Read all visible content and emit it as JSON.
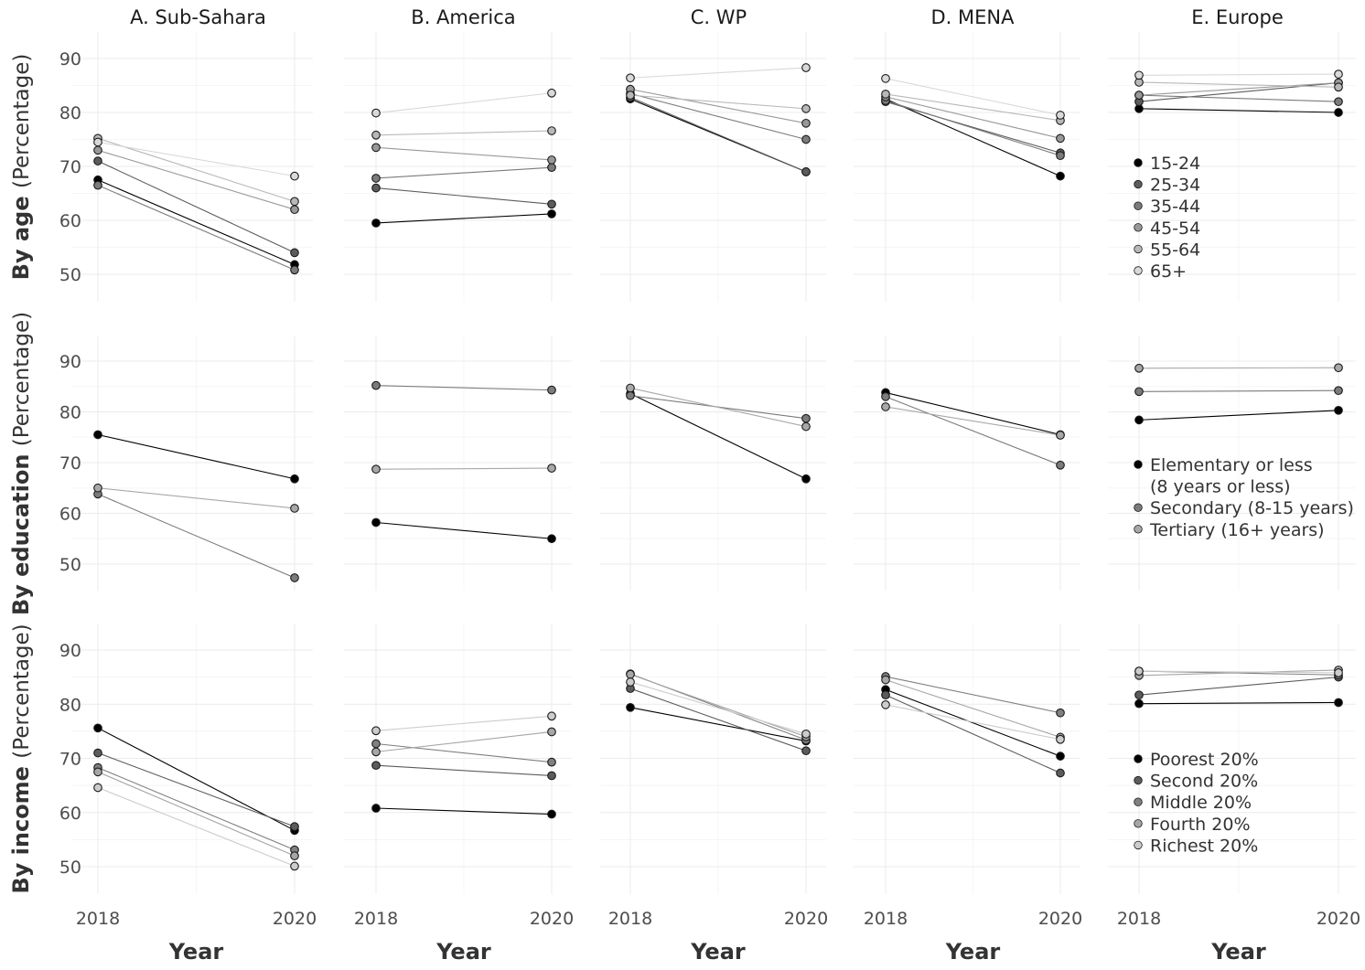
{
  "chart_data": {
    "type": "line",
    "x": [
      2018,
      2020
    ],
    "x_ticks": [
      "2018",
      "2020"
    ],
    "xlabel": "Year",
    "ylim": [
      45,
      95
    ],
    "y_ticks": [
      "50",
      "60",
      "70",
      "80",
      "90"
    ],
    "regions": [
      "A. Sub-Sahara",
      "B. America",
      "C. WP",
      "D. MENA",
      "E. Europe"
    ],
    "rows": [
      {
        "ylabel": "By age",
        "ylabel_suffix": "(Percentage)",
        "series_names": [
          "15-24",
          "25-34",
          "35-44",
          "45-54",
          "55-64",
          "65+"
        ],
        "series_colors": [
          "#000000",
          "#5c5c5c",
          "#7b7b7b",
          "#999999",
          "#b8b8b8",
          "#d9d9d9"
        ],
        "legend": [
          "15-24",
          "25-34",
          "35-44",
          "45-54",
          "55-64",
          "65+"
        ],
        "legend_colors": [
          "#000000",
          "#5c5c5c",
          "#7b7b7b",
          "#999999",
          "#b8b8b8",
          "#d9d9d9"
        ],
        "panels": [
          [
            [
              67.5,
              51.8
            ],
            [
              71.0,
              54.0
            ],
            [
              66.5,
              50.8
            ],
            [
              73.0,
              62.0
            ],
            [
              75.2,
              63.5
            ],
            [
              74.5,
              68.2
            ]
          ],
          [
            [
              59.5,
              61.2
            ],
            [
              66.0,
              63.0
            ],
            [
              67.8,
              69.8
            ],
            [
              73.5,
              71.2
            ],
            [
              75.8,
              76.6
            ],
            [
              79.9,
              83.6
            ]
          ],
          [
            [
              82.5,
              69.0
            ],
            [
              82.8,
              69.0
            ],
            [
              83.5,
              75.0
            ],
            [
              84.3,
              78.0
            ],
            [
              83.2,
              80.7
            ],
            [
              86.4,
              88.3
            ]
          ],
          [
            [
              82.5,
              68.2
            ],
            [
              82.0,
              72.5
            ],
            [
              82.2,
              72.0
            ],
            [
              82.9,
              75.2
            ],
            [
              83.4,
              78.5
            ],
            [
              86.3,
              79.5
            ]
          ],
          [
            [
              80.7,
              80.0
            ],
            [
              82.0,
              85.5
            ],
            [
              83.2,
              82.0
            ],
            [
              83.2,
              85.5
            ],
            [
              85.6,
              84.7
            ],
            [
              86.9,
              87.1
            ]
          ]
        ]
      },
      {
        "ylabel": "By education",
        "ylabel_suffix": "(Percentage)",
        "series_names": [
          "Elementary or less (8 years or less)",
          "Secondary (8-15 years)",
          "Tertiary (16+ years)"
        ],
        "series_colors": [
          "#000000",
          "#7b7b7b",
          "#a8a8a8"
        ],
        "legend": [
          "Elementary or less",
          "(8 years or less)",
          "Secondary (8-15 years)",
          "Tertiary (16+ years)"
        ],
        "legend_colors": [
          "#000000",
          "#7b7b7b",
          "#a8a8a8"
        ],
        "panels": [
          [
            [
              75.5,
              66.8
            ],
            [
              63.8,
              47.3
            ],
            [
              65.0,
              61.0
            ]
          ],
          [
            [
              58.2,
              55.0
            ],
            [
              85.2,
              84.3
            ],
            [
              68.7,
              68.9
            ]
          ],
          [
            [
              83.6,
              66.8
            ],
            [
              83.2,
              78.7
            ],
            [
              84.7,
              77.1
            ]
          ],
          [
            [
              83.8,
              75.5
            ],
            [
              83.0,
              69.5
            ],
            [
              81.0,
              75.4
            ]
          ],
          [
            [
              78.4,
              80.3
            ],
            [
              84.0,
              84.2
            ],
            [
              88.6,
              88.7
            ]
          ]
        ]
      },
      {
        "ylabel": "By income",
        "ylabel_suffix": "(Percentage)",
        "series_names": [
          "Poorest 20%",
          "Second  20%",
          "Middle 20%",
          "Fourth 20%",
          "Richest 20%"
        ],
        "series_colors": [
          "#000000",
          "#5c5c5c",
          "#808080",
          "#a6a6a6",
          "#cccccc"
        ],
        "legend": [
          "Poorest 20%",
          "Second  20%",
          "Middle 20%",
          "Fourth 20%",
          "Richest 20%"
        ],
        "legend_colors": [
          "#000000",
          "#5c5c5c",
          "#808080",
          "#a6a6a6",
          "#cccccc"
        ],
        "panels": [
          [
            [
              75.6,
              56.7
            ],
            [
              71.0,
              57.4
            ],
            [
              68.3,
              53.1
            ],
            [
              67.5,
              52.0
            ],
            [
              64.6,
              50.1
            ]
          ],
          [
            [
              60.8,
              59.7
            ],
            [
              68.7,
              66.8
            ],
            [
              72.7,
              69.3
            ],
            [
              71.2,
              74.9
            ],
            [
              75.1,
              77.8
            ]
          ],
          [
            [
              79.4,
              73.2
            ],
            [
              82.9,
              71.4
            ],
            [
              85.6,
              73.4
            ],
            [
              85.5,
              74.0
            ],
            [
              84.1,
              74.5
            ]
          ],
          [
            [
              82.7,
              70.4
            ],
            [
              81.7,
              67.3
            ],
            [
              85.1,
              78.4
            ],
            [
              84.5,
              73.9
            ],
            [
              79.9,
              73.5
            ]
          ],
          [
            [
              80.1,
              80.3
            ],
            [
              81.7,
              85.0
            ],
            [
              86.1,
              85.4
            ],
            [
              85.3,
              86.3
            ],
            [
              86.1,
              85.8
            ]
          ]
        ]
      }
    ]
  }
}
